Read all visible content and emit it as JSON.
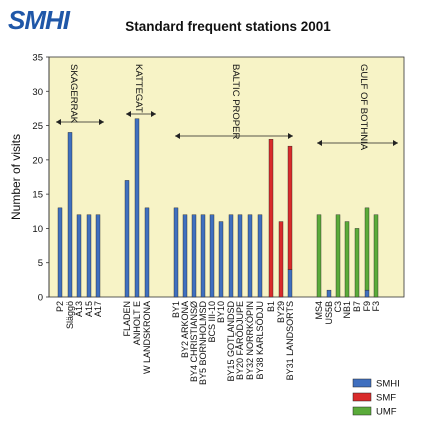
{
  "logo_text": "SMHI",
  "chart_data": {
    "type": "bar",
    "title": "Standard frequent stations 2001",
    "ylabel": "Number of visits",
    "xlabel": "",
    "ylim": [
      0,
      35
    ],
    "yticks": [
      0,
      5,
      10,
      15,
      20,
      25,
      30,
      35
    ],
    "grid": false,
    "legend_position": "bottom-right",
    "colors": {
      "plot_bg": "#f7f3c6",
      "SMHI": "#3f6fbf",
      "SMF": "#d92b2b",
      "UMF": "#5aab3a"
    },
    "series_names": [
      "SMHI",
      "SMF",
      "UMF"
    ],
    "categories": [
      "P2",
      "Släggö",
      "A13",
      "A15",
      "A17",
      "FLADEN",
      "ANHOLT E",
      "W LANDSKRONA",
      "BY1",
      "BY2 ARKONA",
      "BY4 CHRISTIANSØ",
      "BY5 BORNHOLMSD",
      "BCS III-10",
      "BY10",
      "BY15 GOTLANDSD",
      "BY20 FÅRÖDJUPE",
      "BY32 NORRKÖPIN",
      "BY38 KARLSÖDJU",
      "BY31 LANDSORTS",
      "B1",
      "BY29",
      "MS4",
      "US5B",
      "C3",
      "NB1",
      "B7",
      "F9",
      "F3"
    ],
    "series": [
      {
        "name": "SMHI",
        "values": [
          13,
          24,
          12,
          12,
          12,
          17,
          26,
          13,
          13,
          12,
          12,
          12,
          12,
          11,
          12,
          12,
          12,
          12,
          4,
          0,
          0,
          0,
          1,
          0,
          0,
          0,
          1,
          0
        ]
      },
      {
        "name": "SMF",
        "values": [
          0,
          0,
          0,
          0,
          0,
          0,
          0,
          0,
          0,
          0,
          0,
          0,
          0,
          0,
          0,
          0,
          0,
          0,
          18,
          23,
          11,
          0,
          0,
          0,
          0,
          0,
          0,
          0
        ]
      },
      {
        "name": "UMF",
        "values": [
          0,
          0,
          0,
          0,
          0,
          0,
          0,
          0,
          0,
          0,
          0,
          0,
          0,
          0,
          0,
          0,
          0,
          0,
          0,
          0,
          0,
          12,
          0,
          12,
          11,
          10,
          12,
          12
        ]
      }
    ],
    "regions": [
      {
        "name": "SKAGERRAK",
        "from": 0,
        "to": 4
      },
      {
        "name": "KATTEGAT",
        "from": 5,
        "to": 7
      },
      {
        "name": "BALTIC PROPER",
        "from": 8,
        "to": 20
      },
      {
        "name": "GULF OF BOTHNIA",
        "from": 21,
        "to": 27
      }
    ]
  }
}
